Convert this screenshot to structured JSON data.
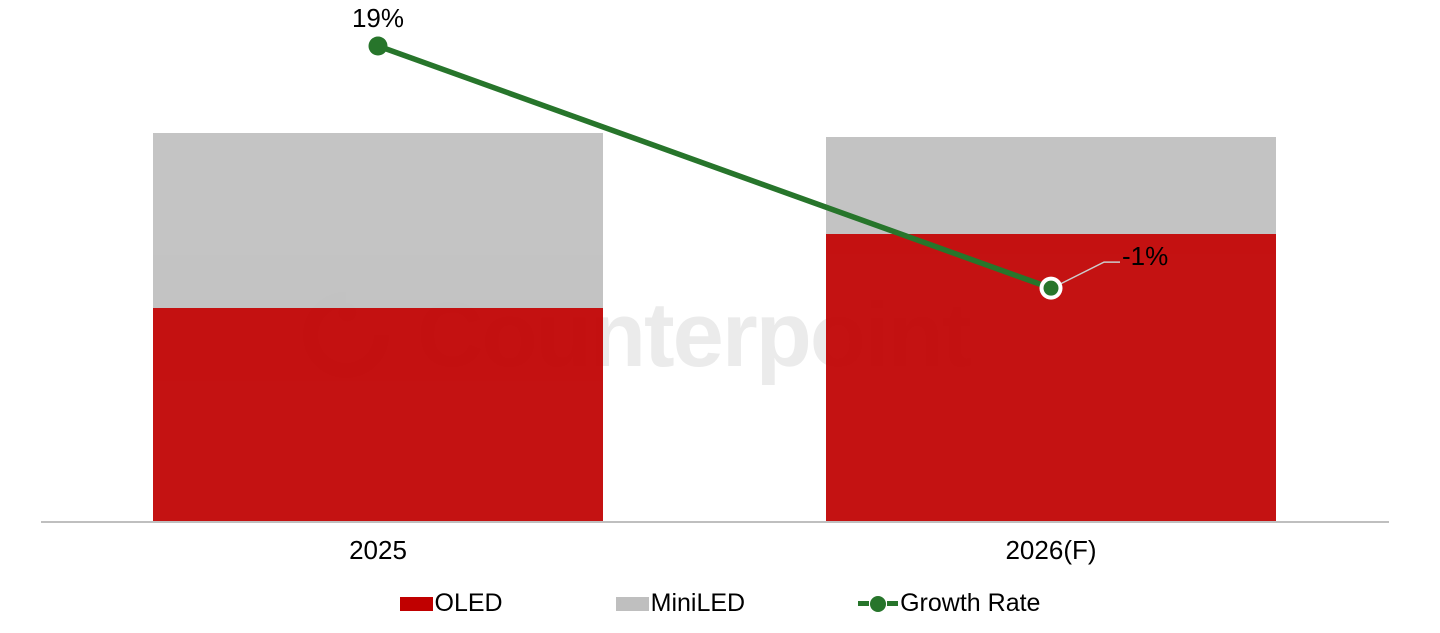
{
  "watermark": {
    "text": "Counterpoint"
  },
  "chart_data": {
    "type": "bar",
    "stacked": true,
    "grid": false,
    "title": "",
    "xlabel": "",
    "ylabel": "",
    "legend_position": "bottom",
    "categories": [
      "2025",
      "2026(F)"
    ],
    "series": [
      {
        "name": "OLED",
        "color": "#c00000",
        "values": [
          55,
          74
        ]
      },
      {
        "name": "MiniLED",
        "color": "#bfbfbf",
        "values": [
          45,
          25
        ]
      }
    ],
    "line": {
      "name": "Growth Rate",
      "color": "#27752b",
      "axis": "secondary",
      "values": [
        19,
        -1
      ],
      "labels": [
        "19%",
        "-1%"
      ]
    },
    "ylim": [
      0,
      134
    ],
    "y2lim": [
      -20.4,
      22.8
    ],
    "axis_color": "#bfbfbf",
    "label_color": "#000000",
    "watermark_color": "#ebebeb"
  }
}
